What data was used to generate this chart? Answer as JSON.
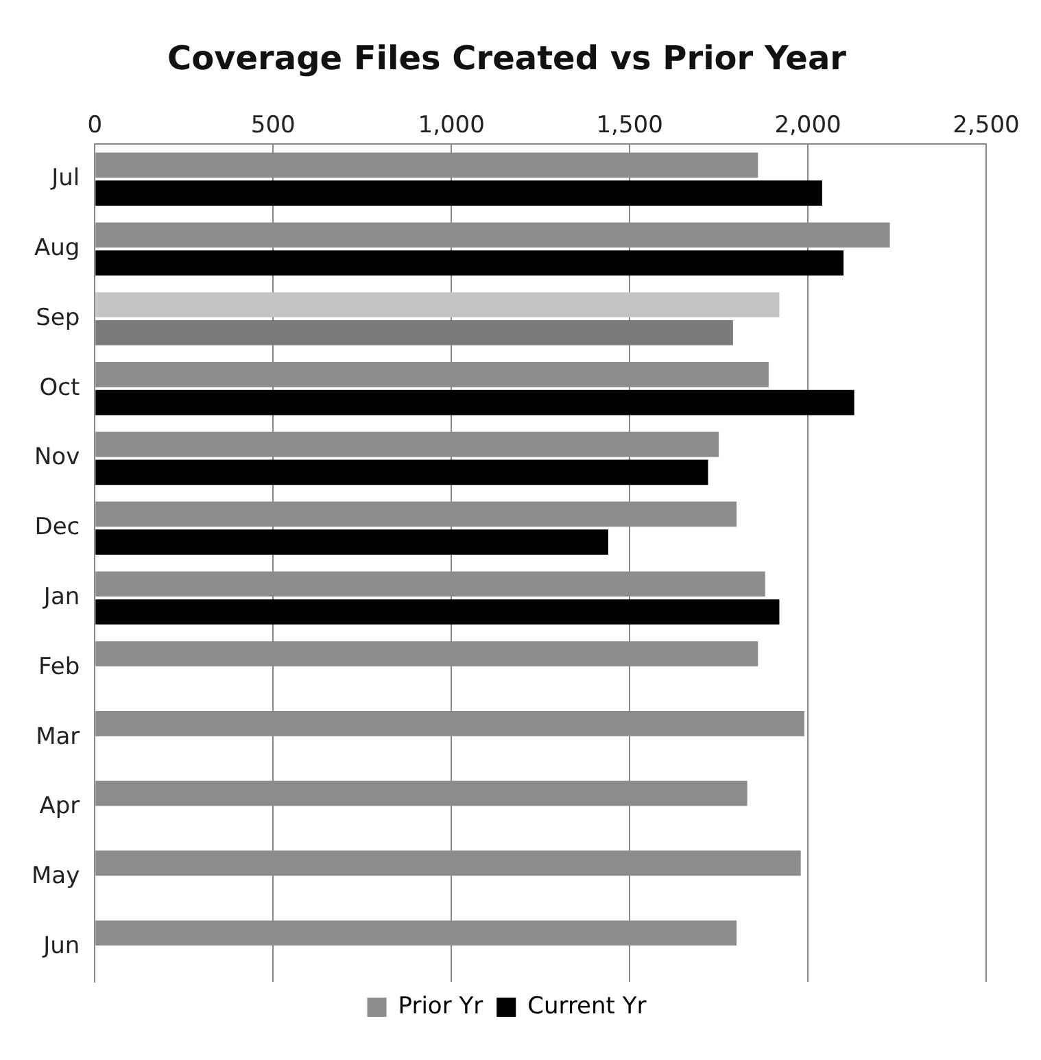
{
  "chart_data": {
    "type": "bar",
    "orientation": "horizontal",
    "title": "Coverage Files Created vs Prior Year",
    "categories": [
      "Jul",
      "Aug",
      "Sep",
      "Oct",
      "Nov",
      "Dec",
      "Jan",
      "Feb",
      "Mar",
      "Apr",
      "May",
      "Jun"
    ],
    "series": [
      {
        "name": "Prior Yr",
        "color": "#8c8c8c",
        "colors": [
          "#8c8c8c",
          "#8c8c8c",
          "#c4c4c4",
          "#8c8c8c",
          "#8c8c8c",
          "#8c8c8c",
          "#8c8c8c",
          "#8c8c8c",
          "#8c8c8c",
          "#8c8c8c",
          "#8c8c8c",
          "#8c8c8c"
        ],
        "values": [
          1860,
          2230,
          1920,
          1890,
          1750,
          1800,
          1880,
          1860,
          1990,
          1830,
          1980,
          1800
        ]
      },
      {
        "name": "Current Yr",
        "color": "#000000",
        "colors": [
          "#000000",
          "#000000",
          "#7a7a7a",
          "#000000",
          "#000000",
          "#000000",
          "#000000",
          "#000000",
          "#000000",
          "#000000",
          "#000000",
          "#000000"
        ],
        "values": [
          2040,
          2100,
          1790,
          2130,
          1720,
          1440,
          1920,
          0,
          0,
          0,
          0,
          0
        ]
      }
    ],
    "xlim": [
      0,
      2500
    ],
    "xticks": [
      {
        "value": 0,
        "label": "0"
      },
      {
        "value": 500,
        "label": "500"
      },
      {
        "value": 1000,
        "label": "1,000"
      },
      {
        "value": 1500,
        "label": "1,500"
      },
      {
        "value": 2000,
        "label": "2,000"
      },
      {
        "value": 2500,
        "label": "2,500"
      }
    ],
    "grid": "x",
    "legend": "bottom"
  }
}
